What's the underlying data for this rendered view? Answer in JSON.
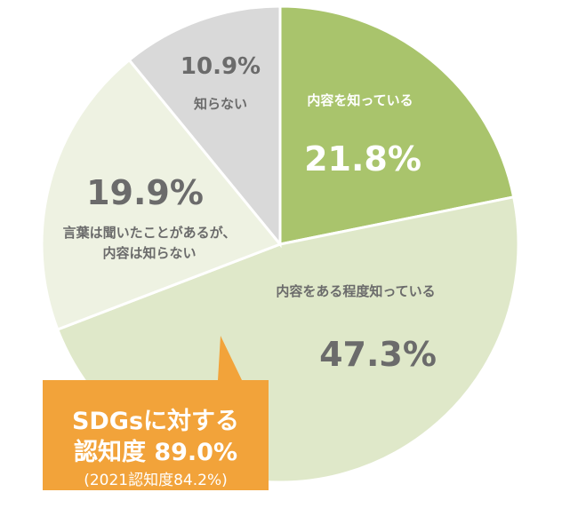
{
  "chart_data": {
    "type": "pie",
    "slices": [
      {
        "label": "内容を知っている",
        "value": 21.8,
        "value_text": "21.8%",
        "color": "#a9c46c",
        "text_color": "#ffffff"
      },
      {
        "label": "内容をある程度知っている",
        "value": 47.3,
        "value_text": "47.3%",
        "color": "#dfe8c9",
        "text_color": "#6b6b6b"
      },
      {
        "label": "言葉は聞いたことがあるが、",
        "label2": "内容は知らない",
        "value": 19.9,
        "value_text": "19.9%",
        "color": "#eef2e2",
        "text_color": "#6b6b6b"
      },
      {
        "label": "知らない",
        "value": 10.9,
        "value_text": "10.9%",
        "color": "#d9d9d9",
        "text_color": "#6b6b6b"
      }
    ],
    "start": "12 o'clock",
    "direction": "clockwise"
  },
  "callout": {
    "line1": "SDGsに対する",
    "line2": "認知度 89.0%",
    "line3": "(2021認知度84.2%)",
    "color": "#f2a33a"
  }
}
